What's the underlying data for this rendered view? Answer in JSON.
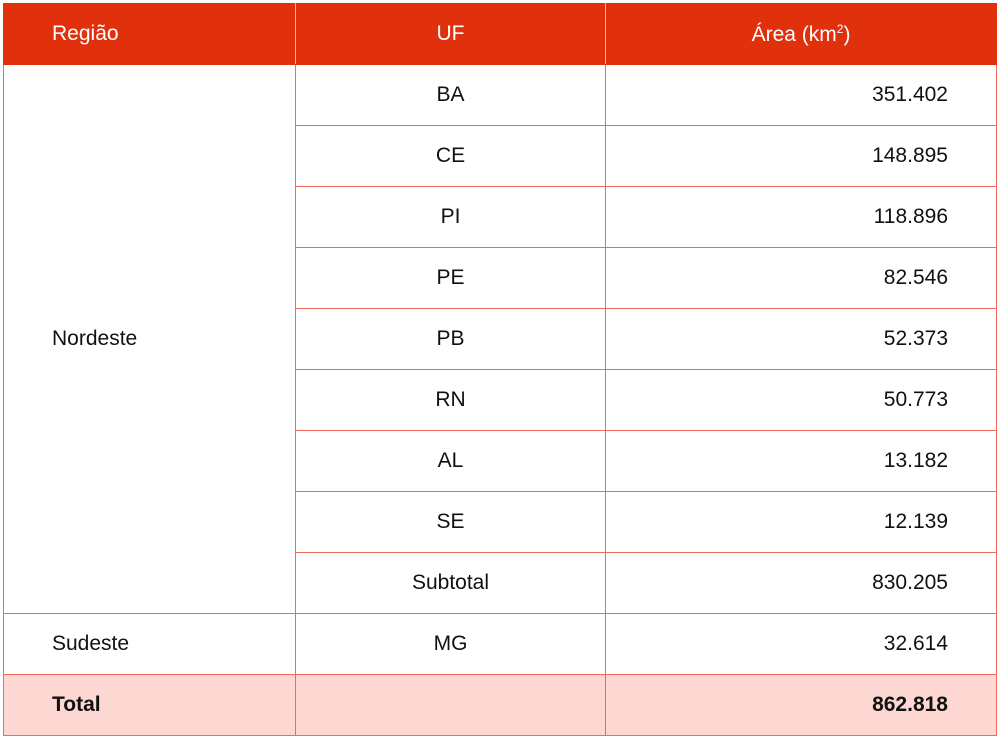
{
  "header": {
    "region": "Região",
    "uf": "UF",
    "area": "Área (km",
    "area_sup": "2",
    "area_close": ")"
  },
  "groups": [
    {
      "region": "Nordeste",
      "rows": [
        {
          "uf": "BA",
          "area": "351.402"
        },
        {
          "uf": "CE",
          "area": "148.895"
        },
        {
          "uf": "PI",
          "area": "118.896"
        },
        {
          "uf": "PE",
          "area": "82.546"
        },
        {
          "uf": "PB",
          "area": "52.373"
        },
        {
          "uf": "RN",
          "area": "50.773"
        },
        {
          "uf": "AL",
          "area": "13.182"
        },
        {
          "uf": "SE",
          "area": "12.139"
        },
        {
          "uf": "Subtotal",
          "area": "830.205"
        }
      ]
    },
    {
      "region": "Sudeste",
      "rows": [
        {
          "uf": "MG",
          "area": "32.614"
        }
      ]
    }
  ],
  "total": {
    "label": "Total",
    "area": "862.818"
  },
  "colors": {
    "header_bg": "#e0300c",
    "border": "#f2685a",
    "total_bg": "#fdd7d1"
  }
}
